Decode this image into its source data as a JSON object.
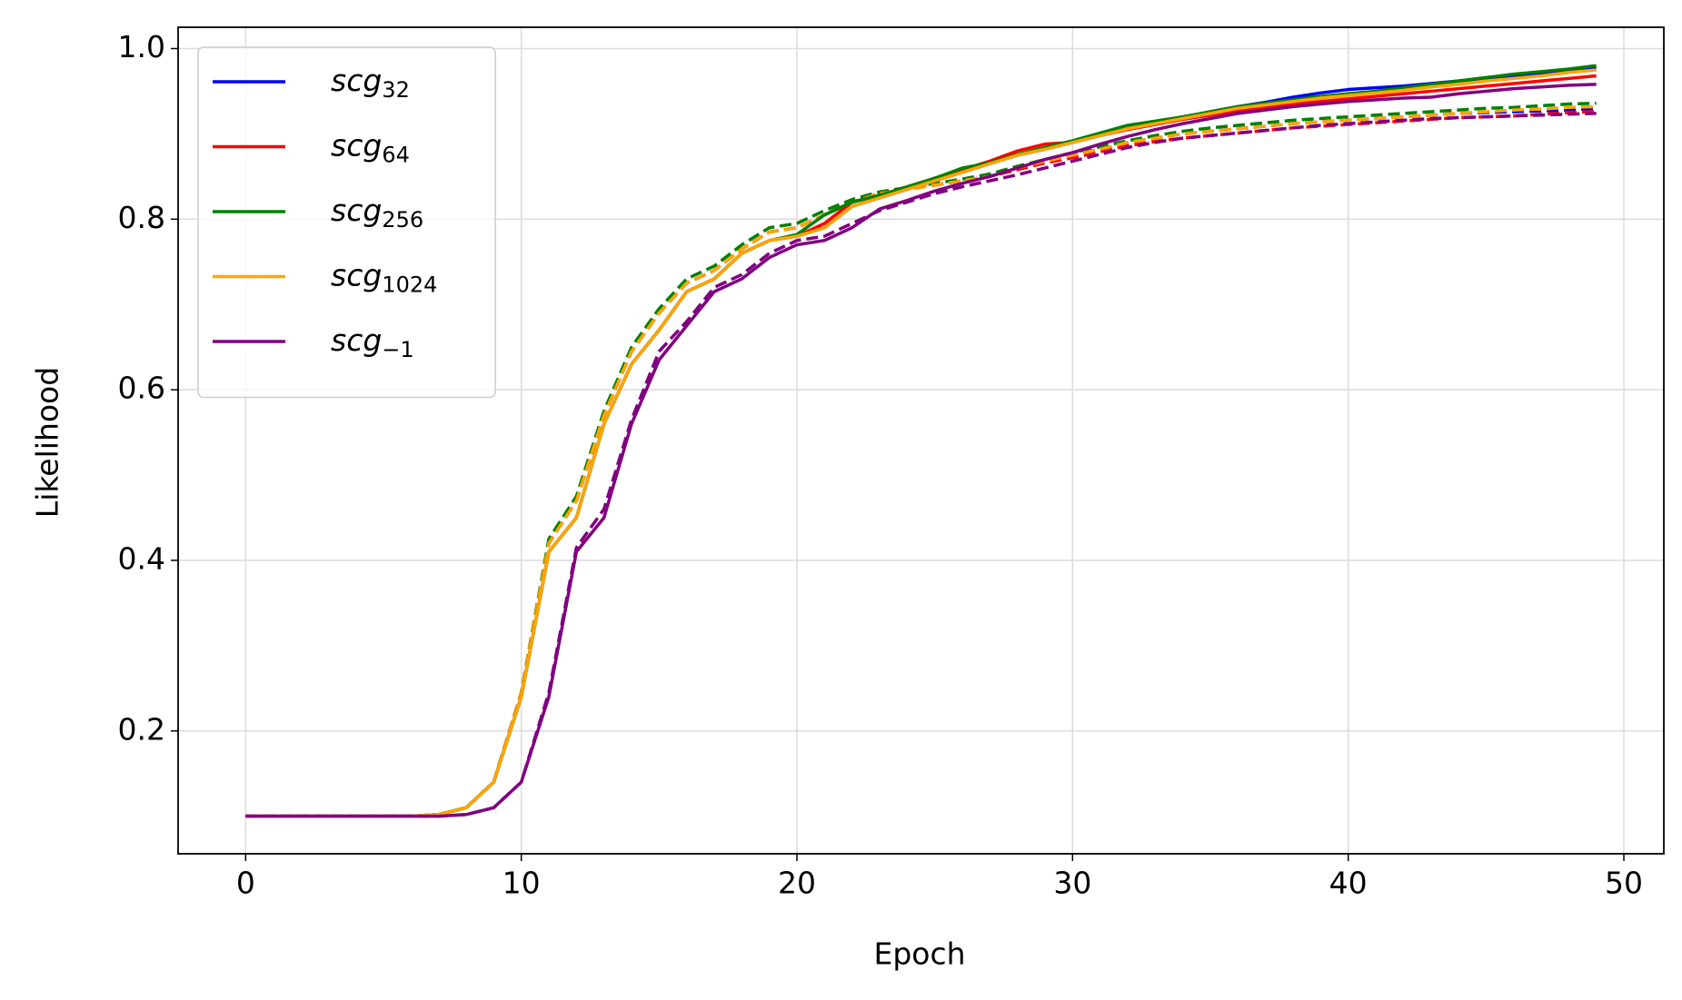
{
  "chart_data": {
    "type": "line",
    "x_label": "Epoch",
    "y_label": "Likelihood",
    "x": [
      0,
      1,
      2,
      3,
      4,
      5,
      6,
      7,
      8,
      9,
      10,
      11,
      12,
      13,
      14,
      15,
      16,
      17,
      18,
      19,
      20,
      21,
      22,
      23,
      24,
      25,
      26,
      27,
      28,
      29,
      30,
      31,
      32,
      33,
      34,
      35,
      36,
      37,
      38,
      39,
      40,
      41,
      42,
      43,
      44,
      45,
      46,
      47,
      48,
      49
    ],
    "xlim": [
      -2.45,
      51.45
    ],
    "ylim": [
      0.056,
      1.025
    ],
    "xticks": [
      0,
      10,
      20,
      30,
      40,
      50
    ],
    "yticks": [
      0.2,
      0.4,
      0.6,
      0.8,
      {
        "value": 1,
        "label": "1.0"
      }
    ],
    "grid": true,
    "legend": "upper left",
    "series": [
      {
        "name": "scg",
        "subscript": "32",
        "color": "#0000ff",
        "values": [
          0.1,
          0.1,
          0.1,
          0.1,
          0.1,
          0.1,
          0.1,
          0.102,
          0.11,
          0.14,
          0.24,
          0.41,
          0.45,
          0.56,
          0.63,
          0.67,
          0.715,
          0.73,
          0.76,
          0.775,
          0.78,
          0.79,
          0.815,
          0.825,
          0.835,
          0.845,
          0.855,
          0.865,
          0.875,
          0.882,
          0.89,
          0.898,
          0.906,
          0.912,
          0.918,
          0.926,
          0.932,
          0.937,
          0.943,
          0.948,
          0.952,
          0.954,
          0.956,
          0.959,
          0.962,
          0.965,
          0.968,
          0.971,
          0.974,
          0.977
        ],
        "values_dashed": [
          0.1,
          0.1,
          0.1,
          0.1,
          0.1,
          0.1,
          0.1,
          0.102,
          0.11,
          0.14,
          0.245,
          0.42,
          0.47,
          0.57,
          0.645,
          0.69,
          0.725,
          0.74,
          0.765,
          0.785,
          0.79,
          0.805,
          0.82,
          0.83,
          0.835,
          0.84,
          0.845,
          0.85,
          0.86,
          0.868,
          0.875,
          0.882,
          0.89,
          0.895,
          0.9,
          0.903,
          0.906,
          0.909,
          0.912,
          0.914,
          0.916,
          0.918,
          0.92,
          0.922,
          0.924,
          0.925,
          0.926,
          0.927,
          0.928,
          0.93
        ]
      },
      {
        "name": "scg",
        "subscript": "64",
        "color": "#ff0000",
        "values": [
          0.1,
          0.1,
          0.1,
          0.1,
          0.1,
          0.1,
          0.1,
          0.102,
          0.11,
          0.14,
          0.24,
          0.41,
          0.45,
          0.56,
          0.63,
          0.67,
          0.715,
          0.73,
          0.76,
          0.775,
          0.78,
          0.795,
          0.82,
          0.828,
          0.838,
          0.848,
          0.858,
          0.868,
          0.88,
          0.888,
          0.89,
          0.898,
          0.905,
          0.911,
          0.917,
          0.922,
          0.927,
          0.931,
          0.935,
          0.938,
          0.941,
          0.944,
          0.947,
          0.95,
          0.953,
          0.956,
          0.959,
          0.962,
          0.965,
          0.968
        ],
        "values_dashed": [
          0.1,
          0.1,
          0.1,
          0.1,
          0.1,
          0.1,
          0.1,
          0.102,
          0.11,
          0.14,
          0.245,
          0.42,
          0.47,
          0.57,
          0.645,
          0.69,
          0.725,
          0.74,
          0.765,
          0.785,
          0.79,
          0.805,
          0.82,
          0.83,
          0.835,
          0.84,
          0.845,
          0.85,
          0.858,
          0.866,
          0.872,
          0.879,
          0.886,
          0.891,
          0.895,
          0.898,
          0.901,
          0.904,
          0.907,
          0.909,
          0.911,
          0.913,
          0.915,
          0.917,
          0.919,
          0.92,
          0.921,
          0.923,
          0.925,
          0.926
        ]
      },
      {
        "name": "scg",
        "subscript": "256",
        "color": "#008000",
        "values": [
          0.1,
          0.1,
          0.1,
          0.1,
          0.1,
          0.1,
          0.1,
          0.102,
          0.11,
          0.14,
          0.24,
          0.41,
          0.45,
          0.56,
          0.63,
          0.67,
          0.715,
          0.73,
          0.76,
          0.775,
          0.782,
          0.805,
          0.82,
          0.828,
          0.838,
          0.848,
          0.86,
          0.866,
          0.876,
          0.884,
          0.892,
          0.901,
          0.91,
          0.915,
          0.92,
          0.926,
          0.932,
          0.936,
          0.94,
          0.944,
          0.947,
          0.95,
          0.954,
          0.958,
          0.962,
          0.966,
          0.97,
          0.973,
          0.976,
          0.98
        ],
        "values_dashed": [
          0.1,
          0.1,
          0.1,
          0.1,
          0.1,
          0.1,
          0.1,
          0.102,
          0.11,
          0.14,
          0.245,
          0.425,
          0.475,
          0.575,
          0.65,
          0.695,
          0.73,
          0.745,
          0.77,
          0.79,
          0.795,
          0.81,
          0.823,
          0.832,
          0.837,
          0.842,
          0.847,
          0.853,
          0.862,
          0.87,
          0.878,
          0.885,
          0.892,
          0.898,
          0.903,
          0.907,
          0.91,
          0.913,
          0.916,
          0.918,
          0.92,
          0.922,
          0.924,
          0.926,
          0.928,
          0.93,
          0.931,
          0.933,
          0.935,
          0.936
        ]
      },
      {
        "name": "scg",
        "subscript": "1024",
        "color": "#ffa500",
        "values": [
          0.1,
          0.1,
          0.1,
          0.1,
          0.1,
          0.1,
          0.1,
          0.102,
          0.11,
          0.14,
          0.24,
          0.41,
          0.45,
          0.56,
          0.63,
          0.67,
          0.715,
          0.73,
          0.76,
          0.775,
          0.78,
          0.79,
          0.815,
          0.825,
          0.835,
          0.845,
          0.855,
          0.865,
          0.875,
          0.882,
          0.89,
          0.898,
          0.906,
          0.912,
          0.918,
          0.924,
          0.93,
          0.934,
          0.938,
          0.942,
          0.945,
          0.948,
          0.951,
          0.955,
          0.958,
          0.962,
          0.965,
          0.968,
          0.972,
          0.975
        ],
        "values_dashed": [
          0.1,
          0.1,
          0.1,
          0.1,
          0.1,
          0.1,
          0.1,
          0.102,
          0.11,
          0.14,
          0.245,
          0.42,
          0.47,
          0.57,
          0.645,
          0.69,
          0.725,
          0.74,
          0.765,
          0.785,
          0.79,
          0.805,
          0.82,
          0.83,
          0.835,
          0.84,
          0.845,
          0.85,
          0.86,
          0.868,
          0.875,
          0.882,
          0.89,
          0.895,
          0.9,
          0.903,
          0.906,
          0.909,
          0.912,
          0.914,
          0.916,
          0.918,
          0.92,
          0.922,
          0.924,
          0.926,
          0.928,
          0.929,
          0.931,
          0.932
        ]
      },
      {
        "name": "scg",
        "subscript": "−1",
        "color": "#800080",
        "values": [
          0.1,
          0.1,
          0.1,
          0.1,
          0.1,
          0.1,
          0.1,
          0.1,
          0.102,
          0.11,
          0.14,
          0.24,
          0.41,
          0.45,
          0.56,
          0.635,
          0.675,
          0.715,
          0.73,
          0.755,
          0.77,
          0.775,
          0.79,
          0.812,
          0.822,
          0.833,
          0.842,
          0.85,
          0.86,
          0.87,
          0.878,
          0.888,
          0.897,
          0.905,
          0.912,
          0.918,
          0.924,
          0.928,
          0.932,
          0.935,
          0.938,
          0.94,
          0.942,
          0.943,
          0.947,
          0.95,
          0.953,
          0.955,
          0.957,
          0.958
        ],
        "values_dashed": [
          0.1,
          0.1,
          0.1,
          0.1,
          0.1,
          0.1,
          0.1,
          0.1,
          0.102,
          0.11,
          0.14,
          0.245,
          0.415,
          0.46,
          0.565,
          0.645,
          0.68,
          0.72,
          0.735,
          0.76,
          0.775,
          0.78,
          0.795,
          0.81,
          0.82,
          0.83,
          0.838,
          0.845,
          0.852,
          0.86,
          0.868,
          0.876,
          0.884,
          0.89,
          0.895,
          0.898,
          0.901,
          0.904,
          0.907,
          0.91,
          0.912,
          0.914,
          0.916,
          0.918,
          0.919,
          0.92,
          0.921,
          0.922,
          0.923,
          0.924
        ]
      }
    ]
  }
}
